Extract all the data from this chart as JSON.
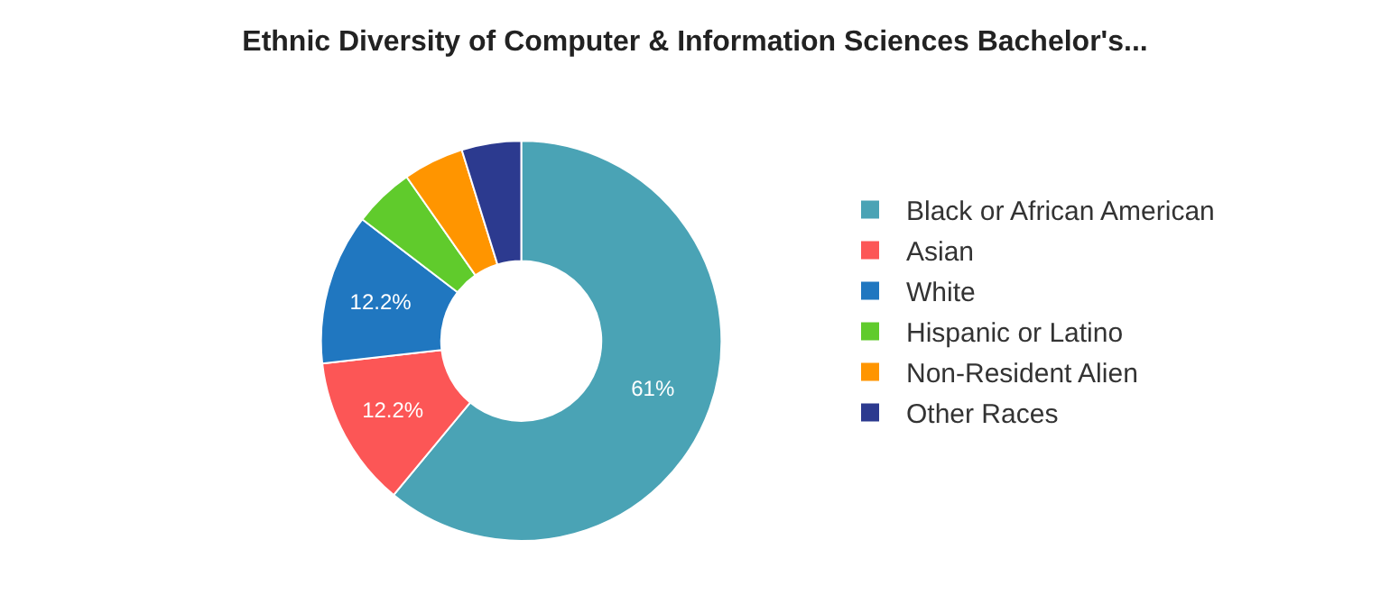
{
  "chart_data": {
    "type": "donut",
    "title": "Ethnic Diversity of Computer & Information Sciences Bachelor's...",
    "categories": [
      "Black or African American",
      "Asian",
      "White",
      "Hispanic or Latino",
      "Non-Resident Alien",
      "Other Races"
    ],
    "values": [
      61,
      12.2,
      12.2,
      4.9,
      4.9,
      4.8
    ],
    "colors": [
      "#4aa3b5",
      "#fc5656",
      "#2077c0",
      "#60cb2c",
      "#ff9500",
      "#2c3a8f"
    ],
    "value_labels": [
      "61%",
      "12.2%",
      "12.2%",
      null,
      null,
      null
    ],
    "legend": "right"
  }
}
